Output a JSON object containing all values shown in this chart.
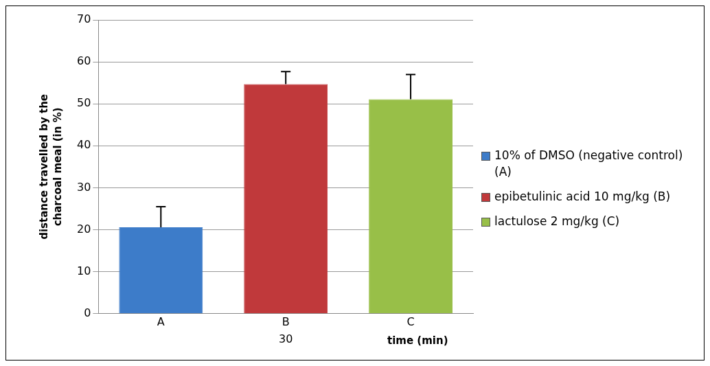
{
  "chart_data": {
    "type": "bar",
    "ylabel": "distance travelled by the charcoal meal (in %)",
    "xlabel": "time (min)",
    "categories": [
      "A",
      "B",
      "C"
    ],
    "series": [
      {
        "name": "10% of DMSO (negative control) (A)",
        "color": "#3d7cc9",
        "values": [
          20.6,
          null,
          null
        ],
        "errors": [
          [
            20.6,
            25.5
          ],
          null,
          null
        ]
      },
      {
        "name": "epibetulinic acid 10 mg/kg (B)",
        "color": "#c0393b",
        "values": [
          null,
          54.7,
          null
        ],
        "errors": [
          null,
          [
            54.7,
            57.7
          ],
          null
        ]
      },
      {
        "name": "lactulose 2 mg/kg (C)",
        "color": "#98bf48",
        "values": [
          null,
          null,
          51.1
        ],
        "errors": [
          null,
          null,
          [
            51.1,
            57.0
          ]
        ]
      }
    ],
    "annotations": [
      "30"
    ],
    "ylim": [
      0,
      70
    ],
    "yticks": [
      0,
      10,
      20,
      30,
      40,
      50,
      60,
      70
    ],
    "grid": "y",
    "legend": "right"
  }
}
